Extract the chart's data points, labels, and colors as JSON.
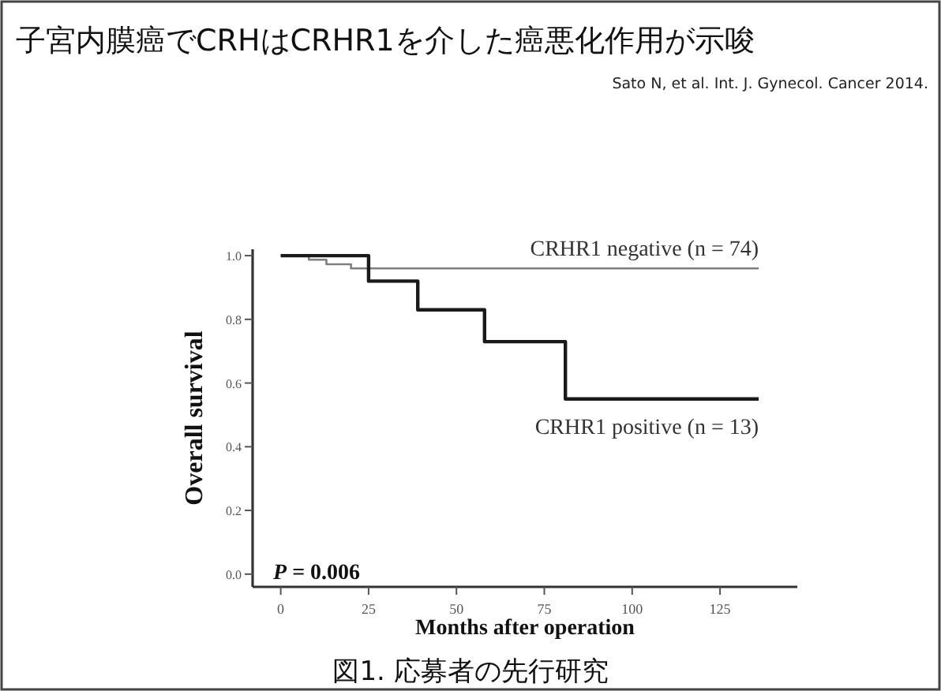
{
  "chart_data": {
    "type": "step",
    "title": "子宮内膜癌でCRHはCRHR1を介した癌悪化作用が示唆",
    "xlabel": "Months after operation",
    "ylabel": "Overall survival",
    "xlim": [
      -8,
      147
    ],
    "ylim": [
      -0.04,
      1.02
    ],
    "xticks": [
      0,
      25,
      50,
      75,
      100,
      125
    ],
    "yticks": [
      {
        "value": 0,
        "label": "0.0"
      },
      {
        "value": 0.2,
        "label": "0.2"
      },
      {
        "value": 0.4,
        "label": "0.4"
      },
      {
        "value": 0.6,
        "label": "0.6"
      },
      {
        "value": 0.8,
        "label": "0.8"
      },
      {
        "value": 1,
        "label": "1.0"
      }
    ],
    "series": [
      {
        "name": "CRHR1 negative (n = 74)",
        "color": "#7f7f7f",
        "x": [
          0,
          8,
          13,
          20,
          136
        ],
        "values": [
          1,
          0.987,
          0.973,
          0.96,
          0.96
        ]
      },
      {
        "name": "CRHR1 positive (n = 13)",
        "color": "#1a1a1a",
        "x": [
          0,
          25,
          39,
          58,
          81,
          136
        ],
        "values": [
          1,
          0.92,
          0.83,
          0.73,
          0.55,
          0.55
        ]
      }
    ],
    "annotations": [
      "Sato N, et al. Int. J. Gynecol. Cancer 2014.",
      "*P* = 0.006",
      "図1. 応募者の先行研究"
    ]
  }
}
